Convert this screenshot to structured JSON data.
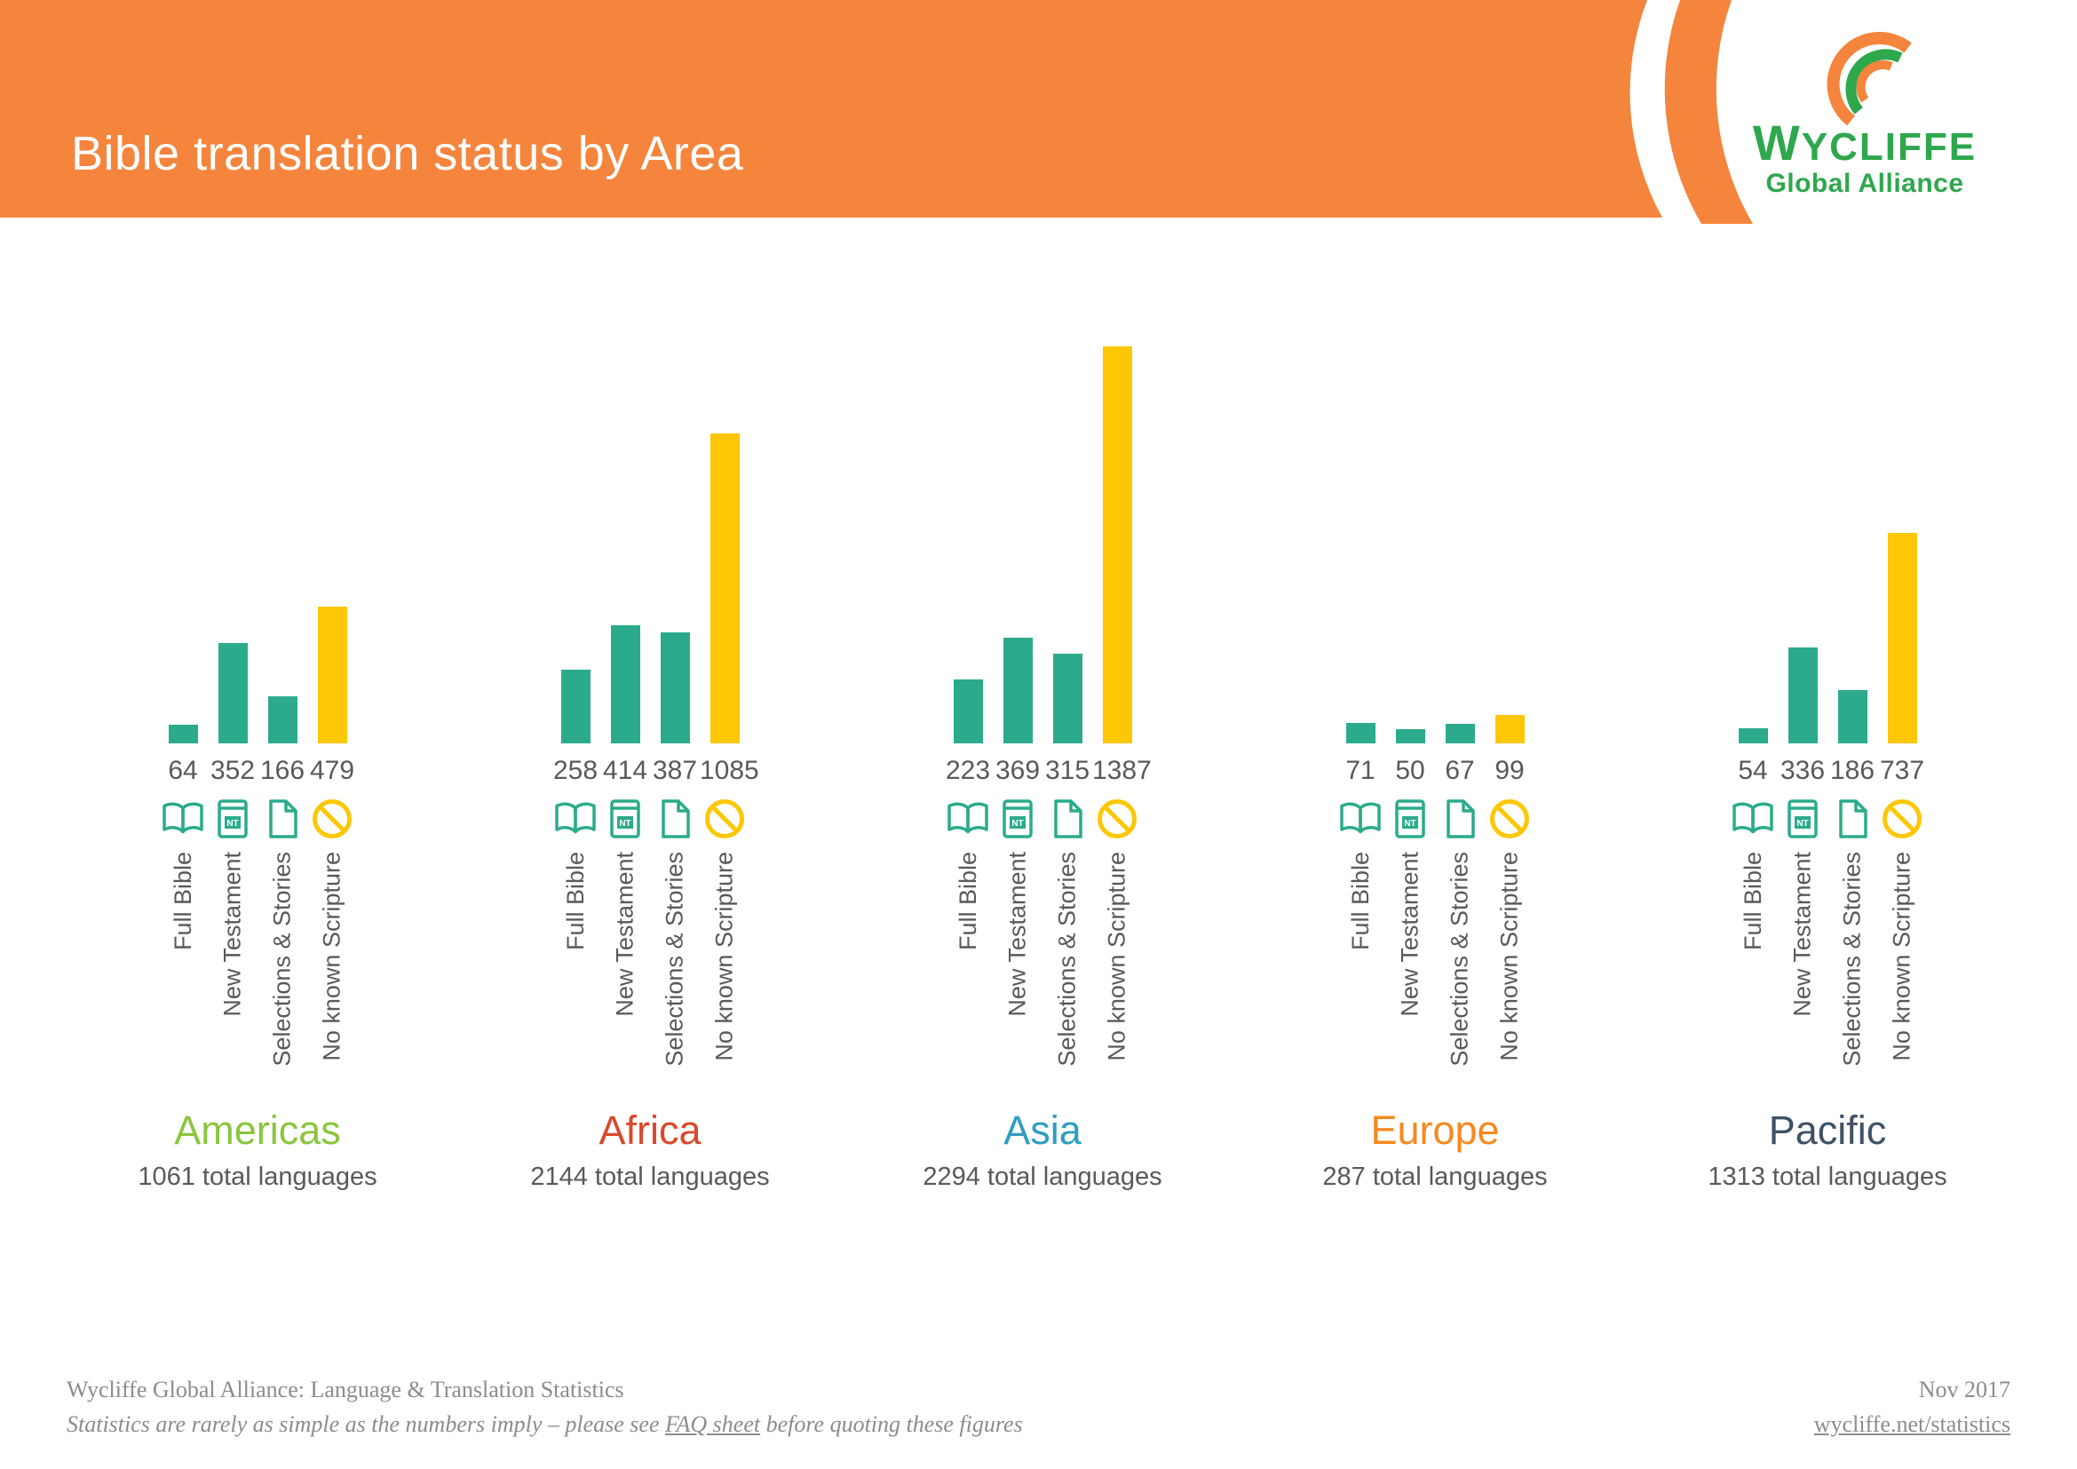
{
  "header": {
    "title": "Bible translation status by Area",
    "logo_name_first": "W",
    "logo_name_rest": "YCLIFFE",
    "logo_subtitle": "Global Alliance",
    "band_color": "#F5843C"
  },
  "chart_data": {
    "type": "bar",
    "categories": [
      "Full Bible",
      "New Testament",
      "Selections & Stories",
      "No known Scripture"
    ],
    "category_icons": [
      "open-book-icon",
      "nt-book-icon",
      "page-icon",
      "no-scripture-icon"
    ],
    "nt_icon_text": "NT",
    "bar_colors": {
      "scripture": "#2BAB8C",
      "no_scripture": "#FDC705"
    },
    "ylim": [
      0,
      1387
    ],
    "groups": [
      {
        "name": "Americas",
        "color": "#8BC53F",
        "values": [
          64,
          352,
          166,
          479
        ],
        "total_label": "1061 total languages"
      },
      {
        "name": "Africa",
        "color": "#D9492B",
        "values": [
          258,
          414,
          387,
          1085
        ],
        "total_label": "2144 total languages"
      },
      {
        "name": "Asia",
        "color": "#2F9EC1",
        "values": [
          223,
          369,
          315,
          1387
        ],
        "total_label": "2294 total languages"
      },
      {
        "name": "Europe",
        "color": "#F6891F",
        "values": [
          71,
          50,
          67,
          99
        ],
        "total_label": "287 total languages"
      },
      {
        "name": "Pacific",
        "color": "#3F5266",
        "values": [
          54,
          336,
          186,
          737
        ],
        "total_label": "1313 total languages"
      }
    ]
  },
  "footer": {
    "line1": "Wycliffe Global Alliance: Language & Translation Statistics",
    "line2_prefix": "Statistics are rarely as simple as the numbers imply – please see ",
    "line2_link": "FAQ sheet",
    "line2_suffix": " before quoting these figures",
    "date": "Nov 2017",
    "link": "wycliffe.net/statistics"
  }
}
